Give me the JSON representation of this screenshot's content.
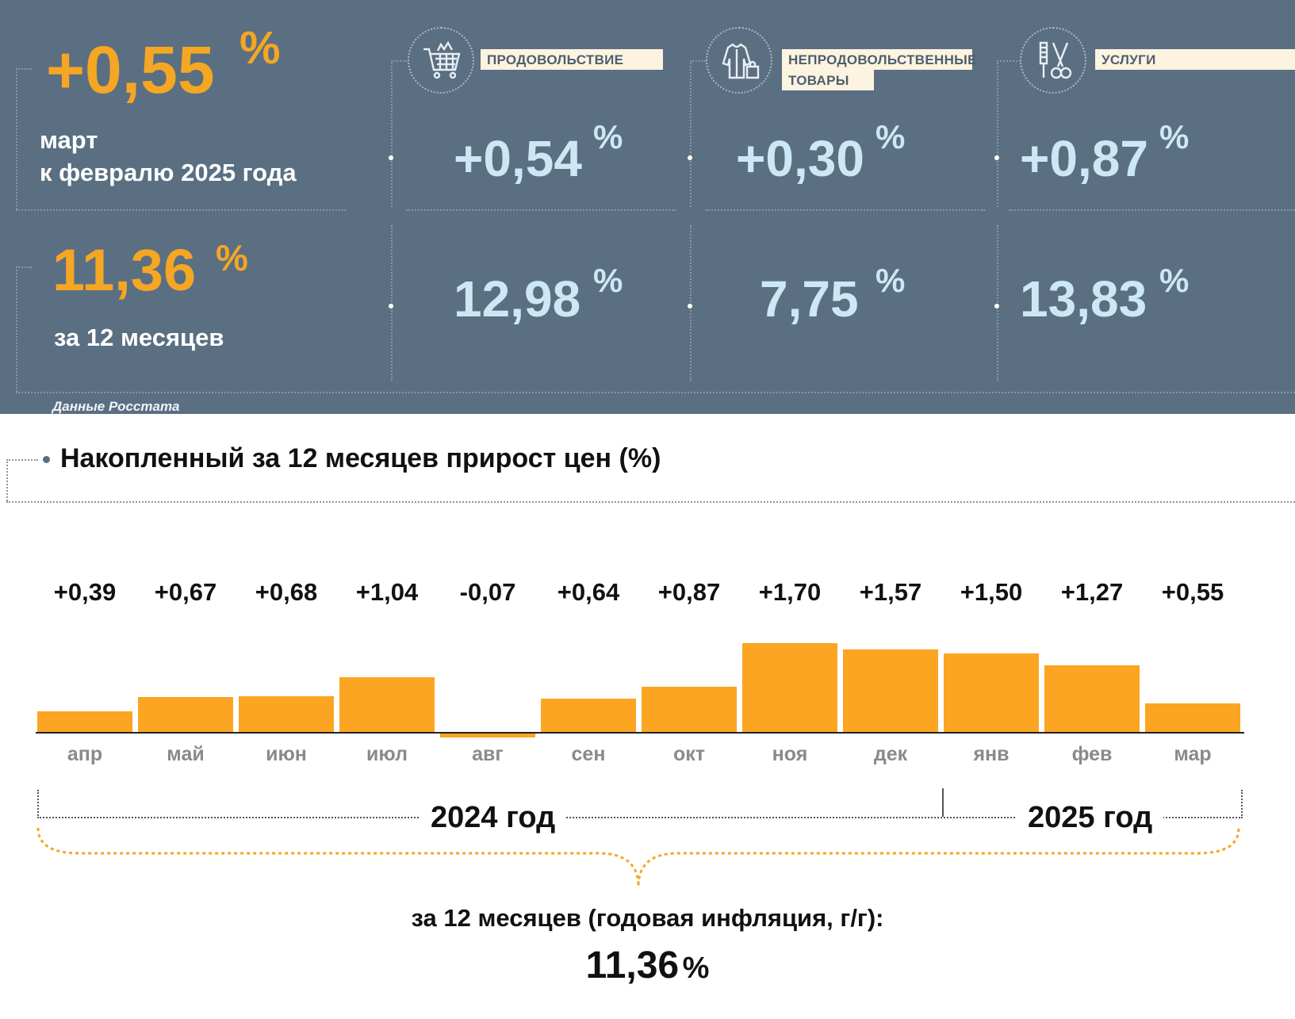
{
  "headline": {
    "monthly": {
      "value": "+0,55",
      "unit": "%",
      "caption_line1": "март",
      "caption_line2": "к февралю 2025 года"
    },
    "annual": {
      "value": "11,36",
      "unit": "%",
      "caption": "за 12 месяцев"
    }
  },
  "categories": [
    {
      "label": "ПРОДОВОЛЬСТВИЕ",
      "icon": "shopping-cart-icon",
      "monthly": "+0,54",
      "annual": "12,98",
      "unit": "%"
    },
    {
      "label_line1": "НЕПРОДОВОЛЬСТВЕННЫЕ",
      "label_line2": "ТОВАРЫ",
      "icon": "clothing-bag-icon",
      "monthly": "+0,30",
      "annual": "7,75",
      "unit": "%"
    },
    {
      "label": "УСЛУГИ",
      "icon": "scissors-comb-icon",
      "monthly": "+0,87",
      "annual": "13,83",
      "unit": "%"
    }
  ],
  "source": "Данные Росстата",
  "colors": {
    "panel": "#5b6f82",
    "orange": "#f5a623",
    "bar": "#fba522",
    "light_blue": "#cde8f5",
    "label_bg": "#fdf3e1"
  },
  "chart_data": {
    "type": "bar",
    "title": "Накопленный за 12 месяцев прирост цен (%)",
    "categories": [
      "апр",
      "май",
      "июн",
      "июл",
      "авг",
      "сен",
      "окт",
      "ноя",
      "дек",
      "янв",
      "фев",
      "мар"
    ],
    "values": [
      0.39,
      0.67,
      0.68,
      1.04,
      -0.07,
      0.64,
      0.87,
      1.7,
      1.57,
      1.5,
      1.27,
      0.55
    ],
    "value_labels": [
      "+0,39",
      "+0,67",
      "+0,68",
      "+1,04",
      "-0,07",
      "+0,64",
      "+0,87",
      "+1,70",
      "+1,57",
      "+1,50",
      "+1,27",
      "+0,55"
    ],
    "ylim": [
      -0.1,
      1.8
    ],
    "years": [
      {
        "label": "2024 год",
        "months": [
          "апр",
          "май",
          "июн",
          "июл",
          "авг",
          "сен",
          "окт",
          "ноя",
          "дек"
        ]
      },
      {
        "label": "2025 год",
        "months": [
          "янв",
          "фев",
          "мар"
        ]
      }
    ],
    "summary_label": "за 12 месяцев (годовая инфляция, г/г):",
    "summary_value": "11,36",
    "summary_unit": "%"
  }
}
